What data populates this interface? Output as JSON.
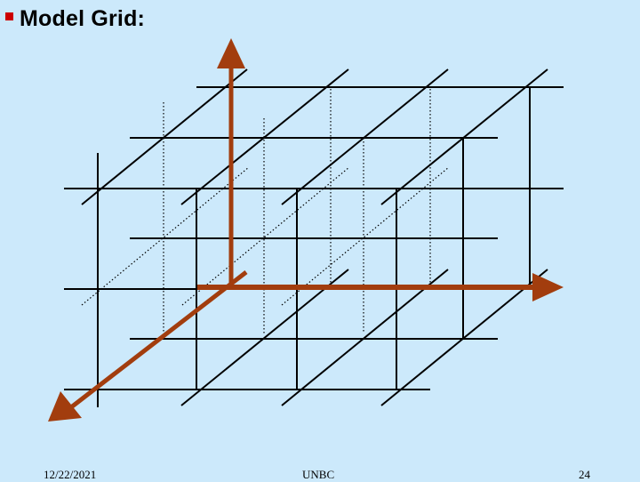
{
  "slide": {
    "title": "Model Grid:",
    "footer_date": "12/22/2021",
    "footer_org": "UNBC",
    "footer_page": "24"
  },
  "colors": {
    "background": "#cce9fb",
    "bullet": "#cc0000",
    "axis": "#a23d0e",
    "grid": "#000000"
  }
}
